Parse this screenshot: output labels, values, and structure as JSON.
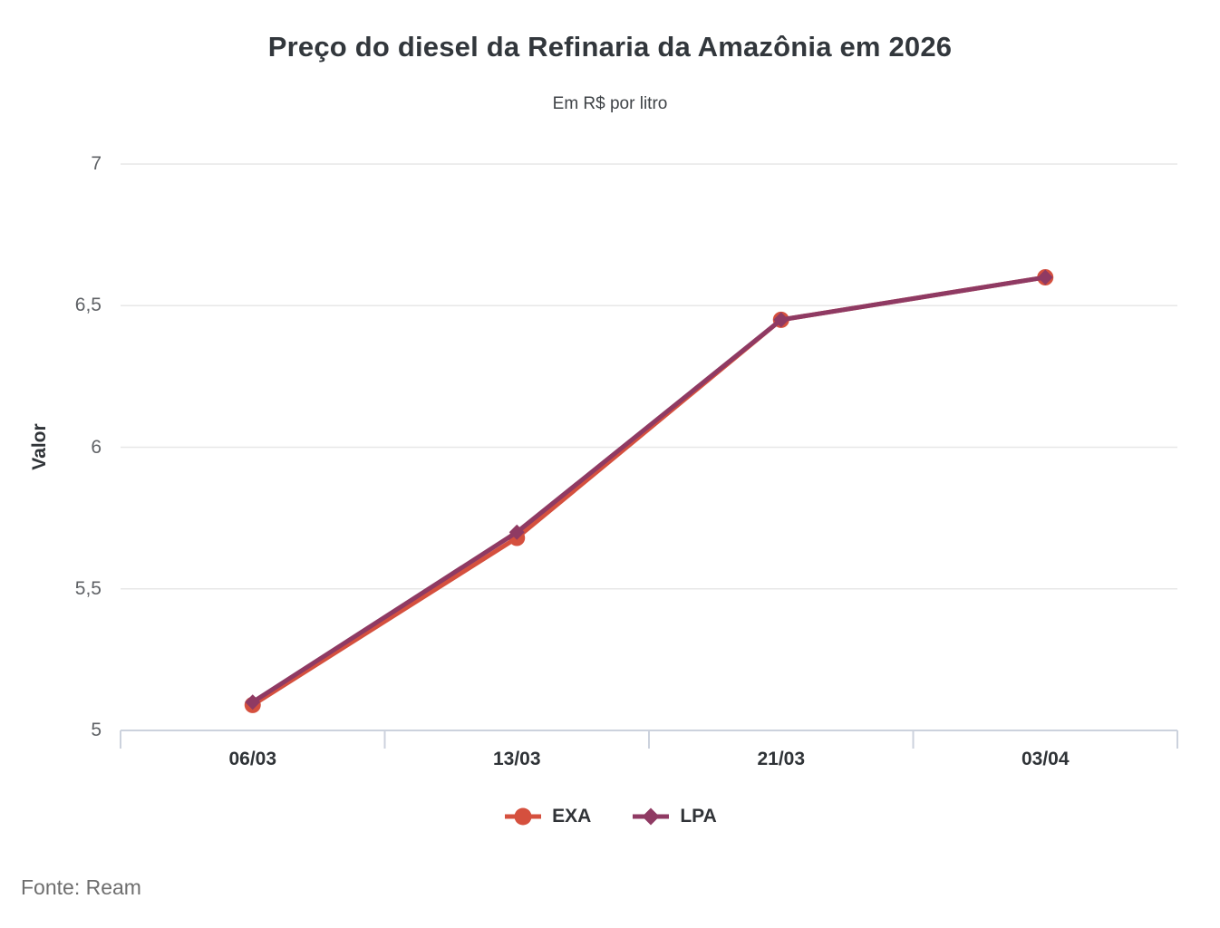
{
  "title": "Preço do diesel da Refinaria da Amazônia em 2026",
  "subtitle": "Em R$ por litro",
  "source": "Fonte: Ream",
  "chart_data": {
    "type": "line",
    "title": "Preço do diesel da Refinaria da Amazônia em 2026",
    "subtitle": "Em R$ por litro",
    "xlabel": "",
    "ylabel": "Valor",
    "ylim": [
      5,
      7
    ],
    "grid": true,
    "legend_position": "bottom",
    "categories": [
      "06/03",
      "13/03",
      "21/03",
      "03/04"
    ],
    "yticks": [
      {
        "value": 5,
        "label": "5"
      },
      {
        "value": 5.5,
        "label": "5,5"
      },
      {
        "value": 6,
        "label": "6"
      },
      {
        "value": 6.5,
        "label": "6,5"
      },
      {
        "value": 7,
        "label": "7"
      }
    ],
    "series": [
      {
        "name": "EXA",
        "marker": "circle",
        "color": "#d5503e",
        "values": [
          5.09,
          5.68,
          6.45,
          6.6
        ]
      },
      {
        "name": "LPA",
        "marker": "diamond",
        "color": "#8f3a63",
        "values": [
          5.1,
          5.7,
          6.45,
          6.6
        ]
      }
    ]
  }
}
